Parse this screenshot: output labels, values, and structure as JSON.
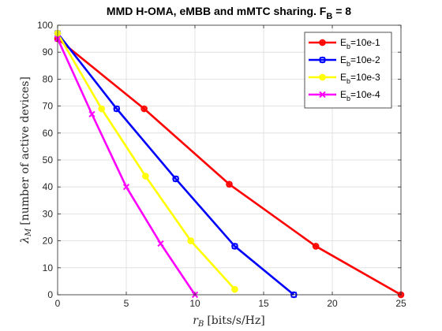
{
  "chart_data": {
    "type": "line",
    "title": "MMD H-OMA, eMBB and mMTC sharing. F",
    "title_sub": "B",
    "title_suffix": " = 8",
    "xlabel_main": "r",
    "xlabel_sub": "B",
    "xlabel_units": "[bits/s/Hz]",
    "ylabel_main": "λ",
    "ylabel_sub": "M",
    "ylabel_units": "[number of active devices]",
    "xlim": [
      0,
      25
    ],
    "ylim": [
      0,
      100
    ],
    "xticks": [
      0,
      5,
      10,
      15,
      20,
      25
    ],
    "yticks": [
      0,
      10,
      20,
      30,
      40,
      50,
      60,
      70,
      80,
      90,
      100
    ],
    "grid": true,
    "legend_position": "top-right",
    "series": [
      {
        "legend_main": "E",
        "legend_sub": "b",
        "legend_suffix": "=10e-1",
        "color": "#ff0000",
        "marker": "circle-star",
        "points": [
          [
            0,
            95
          ],
          [
            6.3,
            69
          ],
          [
            12.5,
            41
          ],
          [
            18.8,
            18
          ],
          [
            25,
            0
          ]
        ]
      },
      {
        "legend_main": "E",
        "legend_sub": "b",
        "legend_suffix": "=10e-2",
        "color": "#0000ff",
        "marker": "circle-square",
        "points": [
          [
            0,
            97
          ],
          [
            4.3,
            69
          ],
          [
            8.6,
            43
          ],
          [
            12.9,
            18
          ],
          [
            17.2,
            0
          ]
        ]
      },
      {
        "legend_main": "E",
        "legend_sub": "b",
        "legend_suffix": "=10e-3",
        "color": "#ffff00",
        "marker": "circle-star",
        "points": [
          [
            0,
            97
          ],
          [
            3.2,
            69
          ],
          [
            6.4,
            44
          ],
          [
            9.7,
            20
          ],
          [
            12.9,
            2
          ]
        ]
      },
      {
        "legend_main": "E",
        "legend_sub": "b",
        "legend_suffix": "=10e-4",
        "color": "#ff00ff",
        "marker": "x",
        "points": [
          [
            0,
            95
          ],
          [
            2.5,
            67
          ],
          [
            5,
            40
          ],
          [
            7.5,
            19
          ],
          [
            10,
            0
          ]
        ]
      }
    ]
  }
}
